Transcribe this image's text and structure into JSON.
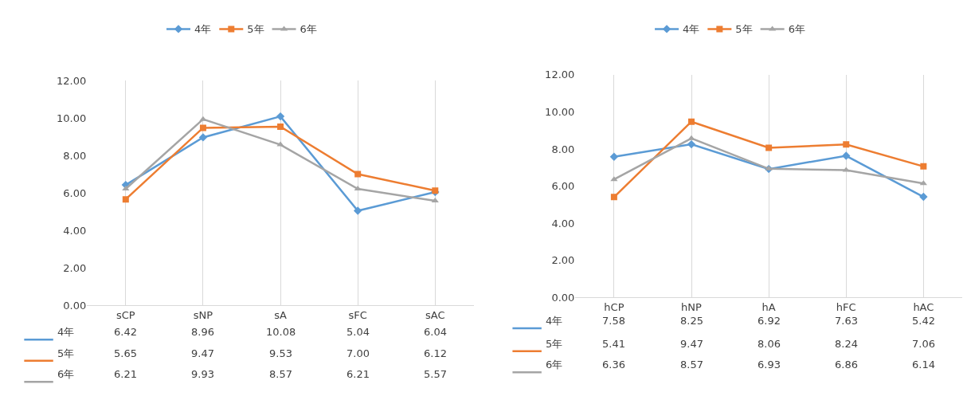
{
  "chart_data": [
    {
      "type": "line",
      "categories": [
        "sCP",
        "sNP",
        "sA",
        "sFC",
        "sAC"
      ],
      "ylim": [
        0,
        12
      ],
      "yticks": [
        {
          "value": 0,
          "label": "0.00"
        },
        {
          "value": 2,
          "label": "2.00"
        },
        {
          "value": 4,
          "label": "4.00"
        },
        {
          "value": 6,
          "label": "6.00"
        },
        {
          "value": 8,
          "label": "8.00"
        },
        {
          "value": 10,
          "label": "10.00"
        },
        {
          "value": 12,
          "label": "12.00"
        }
      ],
      "grid": "x",
      "legend": "top",
      "series": [
        {
          "name": "4年",
          "color": "#5b9bd5",
          "marker": "diamond",
          "values": [
            6.42,
            8.96,
            10.08,
            5.04,
            6.04
          ],
          "value_labels": [
            "6.42",
            "8.96",
            "10.08",
            "5.04",
            "6.04"
          ]
        },
        {
          "name": "5年",
          "color": "#ed7d31",
          "marker": "square",
          "values": [
            5.65,
            9.47,
            9.53,
            7.0,
            6.12
          ],
          "value_labels": [
            "5.65",
            "9.47",
            "9.53",
            "7.00",
            "6.12"
          ]
        },
        {
          "name": "6年",
          "color": "#a5a5a5",
          "marker": "triangle",
          "values": [
            6.21,
            9.93,
            8.57,
            6.21,
            5.57
          ],
          "value_labels": [
            "6.21",
            "9.93",
            "8.57",
            "6.21",
            "5.57"
          ]
        }
      ]
    },
    {
      "type": "line",
      "categories": [
        "hCP",
        "hNP",
        "hA",
        "hFC",
        "hAC"
      ],
      "ylim": [
        0,
        12
      ],
      "yticks": [
        {
          "value": 0,
          "label": "0.00"
        },
        {
          "value": 2,
          "label": "2.00"
        },
        {
          "value": 4,
          "label": "4.00"
        },
        {
          "value": 6,
          "label": "6.00"
        },
        {
          "value": 8,
          "label": "8.00"
        },
        {
          "value": 10,
          "label": "10.00"
        },
        {
          "value": 12,
          "label": "12.00"
        }
      ],
      "grid": "x",
      "legend": "top",
      "series": [
        {
          "name": "4年",
          "color": "#5b9bd5",
          "marker": "diamond",
          "values": [
            7.58,
            8.25,
            6.92,
            7.63,
            5.42
          ],
          "value_labels": [
            "7.58",
            "8.25",
            "6.92",
            "7.63",
            "5.42"
          ]
        },
        {
          "name": "5年",
          "color": "#ed7d31",
          "marker": "square",
          "values": [
            5.41,
            9.47,
            8.06,
            8.24,
            7.06
          ],
          "value_labels": [
            "5.41",
            "9.47",
            "8.06",
            "8.24",
            "7.06"
          ]
        },
        {
          "name": "6年",
          "color": "#a5a5a5",
          "marker": "triangle",
          "values": [
            6.36,
            8.57,
            6.93,
            6.86,
            6.14
          ],
          "value_labels": [
            "6.36",
            "8.57",
            "6.93",
            "6.86",
            "6.14"
          ]
        }
      ]
    }
  ]
}
